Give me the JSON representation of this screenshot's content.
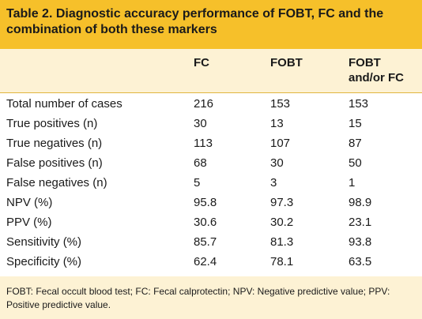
{
  "title": "Table 2. Diagnostic accuracy performance of FOBT, FC and the combination of both these markers",
  "columns": [
    "FC",
    "FOBT",
    "FOBT and/or FC"
  ],
  "rows": [
    {
      "label": "Total number of cases",
      "fc": "216",
      "fobt": "153",
      "both": "153"
    },
    {
      "label": "True positives (n)",
      "fc": "30",
      "fobt": "13",
      "both": "15"
    },
    {
      "label": "True negatives (n)",
      "fc": "113",
      "fobt": "107",
      "both": "87"
    },
    {
      "label": "False positives (n)",
      "fc": "68",
      "fobt": "30",
      "both": "50"
    },
    {
      "label": "False negatives (n)",
      "fc": "5",
      "fobt": "3",
      "both": "1"
    },
    {
      "label": "NPV (%)",
      "fc": "95.8",
      "fobt": "97.3",
      "both": "98.9"
    },
    {
      "label": "PPV (%)",
      "fc": "30.6",
      "fobt": "30.2",
      "both": "23.1"
    },
    {
      "label": "Sensitivity (%)",
      "fc": "85.7",
      "fobt": "81.3",
      "both": "93.8"
    },
    {
      "label": "Specificity (%)",
      "fc": "62.4",
      "fobt": "78.1",
      "both": "63.5"
    }
  ],
  "footnote": "FOBT: Fecal occult blood test; FC: Fecal calprotectin; NPV: Negative predictive value; PPV: Positive predictive value.",
  "colors": {
    "title_band": "#f6c02a",
    "header_band": "#fdf2d4",
    "footnote_band": "#fdf2d4",
    "body": "#ffffff",
    "divider": "#e0b640"
  }
}
